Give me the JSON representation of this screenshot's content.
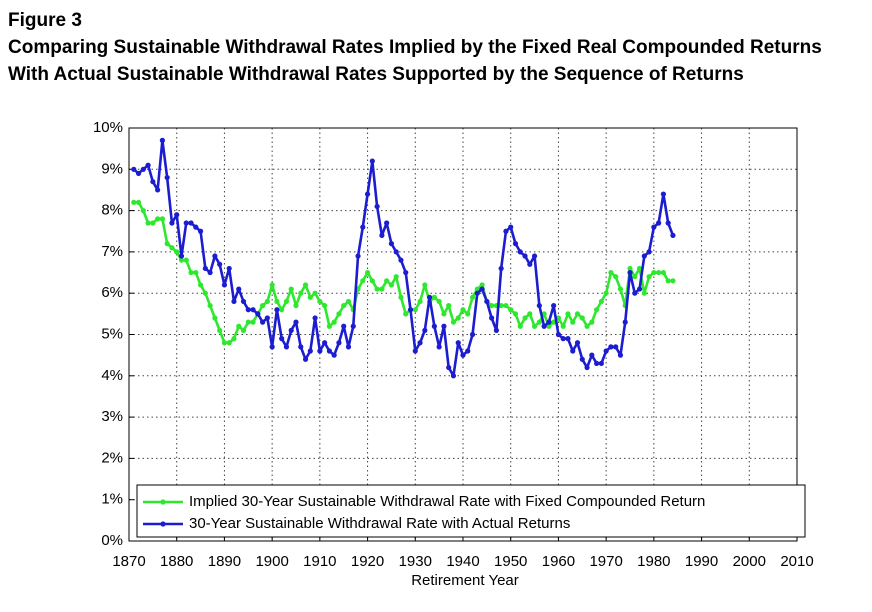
{
  "chart_data": {
    "type": "line",
    "figure_label": "Figure 3",
    "title": "Comparing Sustainable Withdrawal Rates Implied by the Fixed Real Compounded Returns",
    "subtitle": "With Actual Sustainable Withdrawal Rates Supported by the Sequence of Returns",
    "x_label": "Retirement Year",
    "x": [
      1871,
      1872,
      1873,
      1874,
      1875,
      1876,
      1877,
      1878,
      1879,
      1880,
      1881,
      1882,
      1883,
      1884,
      1885,
      1886,
      1887,
      1888,
      1889,
      1890,
      1891,
      1892,
      1893,
      1894,
      1895,
      1896,
      1897,
      1898,
      1899,
      1900,
      1901,
      1902,
      1903,
      1904,
      1905,
      1906,
      1907,
      1908,
      1909,
      1910,
      1911,
      1912,
      1913,
      1914,
      1915,
      1916,
      1917,
      1918,
      1919,
      1920,
      1921,
      1922,
      1923,
      1924,
      1925,
      1926,
      1927,
      1928,
      1929,
      1930,
      1931,
      1932,
      1933,
      1934,
      1935,
      1936,
      1937,
      1938,
      1939,
      1940,
      1941,
      1942,
      1943,
      1944,
      1945,
      1946,
      1947,
      1948,
      1949,
      1950,
      1951,
      1952,
      1953,
      1954,
      1955,
      1956,
      1957,
      1958,
      1959,
      1960,
      1961,
      1962,
      1963,
      1964,
      1965,
      1966,
      1967,
      1968,
      1969,
      1970,
      1971,
      1972,
      1973,
      1974,
      1975,
      1976,
      1977,
      1978,
      1979,
      1980,
      1981,
      1982,
      1983,
      1984
    ],
    "series": [
      {
        "name": "Implied 30-Year Sustainable Withdrawal Rate with Fixed Compounded Return",
        "color": "#2ee82e",
        "values": [
          8.2,
          8.2,
          8.0,
          7.7,
          7.7,
          7.8,
          7.8,
          7.2,
          7.1,
          7.0,
          6.8,
          6.8,
          6.5,
          6.5,
          6.2,
          6.0,
          5.7,
          5.4,
          5.1,
          4.8,
          4.8,
          4.9,
          5.2,
          5.1,
          5.3,
          5.3,
          5.5,
          5.7,
          5.8,
          6.2,
          5.8,
          5.6,
          5.8,
          6.1,
          5.7,
          6.0,
          6.2,
          5.9,
          6.0,
          5.8,
          5.7,
          5.2,
          5.3,
          5.5,
          5.7,
          5.8,
          5.6,
          6.1,
          6.3,
          6.5,
          6.3,
          6.1,
          6.1,
          6.3,
          6.2,
          6.4,
          5.9,
          5.5,
          5.6,
          5.6,
          5.8,
          6.2,
          5.8,
          5.9,
          5.8,
          5.5,
          5.7,
          5.3,
          5.4,
          5.6,
          5.5,
          5.9,
          6.1,
          6.2,
          5.8,
          5.7,
          5.7,
          5.7,
          5.7,
          5.6,
          5.5,
          5.2,
          5.4,
          5.5,
          5.2,
          5.3,
          5.5,
          5.2,
          5.3,
          5.4,
          5.2,
          5.5,
          5.3,
          5.5,
          5.4,
          5.2,
          5.3,
          5.6,
          5.8,
          6.0,
          6.5,
          6.4,
          6.1,
          5.7,
          6.6,
          6.4,
          6.6,
          6.0,
          6.4,
          6.5,
          6.5,
          6.5,
          6.3,
          6.3
        ]
      },
      {
        "name": "30-Year Sustainable Withdrawal Rate with Actual Returns",
        "color": "#1c1cd0",
        "values": [
          9.0,
          8.9,
          9.0,
          9.1,
          8.7,
          8.5,
          9.7,
          8.8,
          7.7,
          7.9,
          6.9,
          7.7,
          7.7,
          7.6,
          7.5,
          6.6,
          6.5,
          6.9,
          6.7,
          6.2,
          6.6,
          5.8,
          6.1,
          5.8,
          5.6,
          5.6,
          5.5,
          5.3,
          5.4,
          4.7,
          5.6,
          4.9,
          4.7,
          5.1,
          5.3,
          4.7,
          4.4,
          4.6,
          5.4,
          4.6,
          4.8,
          4.6,
          4.5,
          4.8,
          5.2,
          4.7,
          5.2,
          6.9,
          7.6,
          8.4,
          9.2,
          8.1,
          7.4,
          7.7,
          7.2,
          7.0,
          6.8,
          6.5,
          5.6,
          4.6,
          4.8,
          5.1,
          5.9,
          5.2,
          4.7,
          5.2,
          4.2,
          4.0,
          4.8,
          4.5,
          4.6,
          5.0,
          6.0,
          6.1,
          5.8,
          5.4,
          5.1,
          6.6,
          7.5,
          7.6,
          7.2,
          7.0,
          6.9,
          6.7,
          6.9,
          5.7,
          5.2,
          5.3,
          5.7,
          5.0,
          4.9,
          4.9,
          4.6,
          4.8,
          4.4,
          4.2,
          4.5,
          4.3,
          4.3,
          4.6,
          4.7,
          4.7,
          4.5,
          5.3,
          6.5,
          6.0,
          6.1,
          6.9,
          7.0,
          7.6,
          7.7,
          8.4,
          7.7,
          7.4
        ]
      }
    ],
    "xlim": [
      1870,
      2010
    ],
    "xticks": [
      1870,
      1880,
      1890,
      1900,
      1910,
      1920,
      1930,
      1940,
      1950,
      1960,
      1970,
      1980,
      1990,
      2000,
      2010
    ],
    "ylim": [
      0,
      10
    ],
    "yticks": [
      {
        "value": 0,
        "label": "0%"
      },
      {
        "value": 1,
        "label": "1%"
      },
      {
        "value": 2,
        "label": "2%"
      },
      {
        "value": 3,
        "label": "3%"
      },
      {
        "value": 4,
        "label": "4%"
      },
      {
        "value": 5,
        "label": "5%"
      },
      {
        "value": 6,
        "label": "6%"
      },
      {
        "value": 7,
        "label": "7%"
      },
      {
        "value": 8,
        "label": "8%"
      },
      {
        "value": 9,
        "label": "9%"
      },
      {
        "value": 10,
        "label": "10%"
      }
    ],
    "grid": true,
    "legend": "lower left"
  }
}
